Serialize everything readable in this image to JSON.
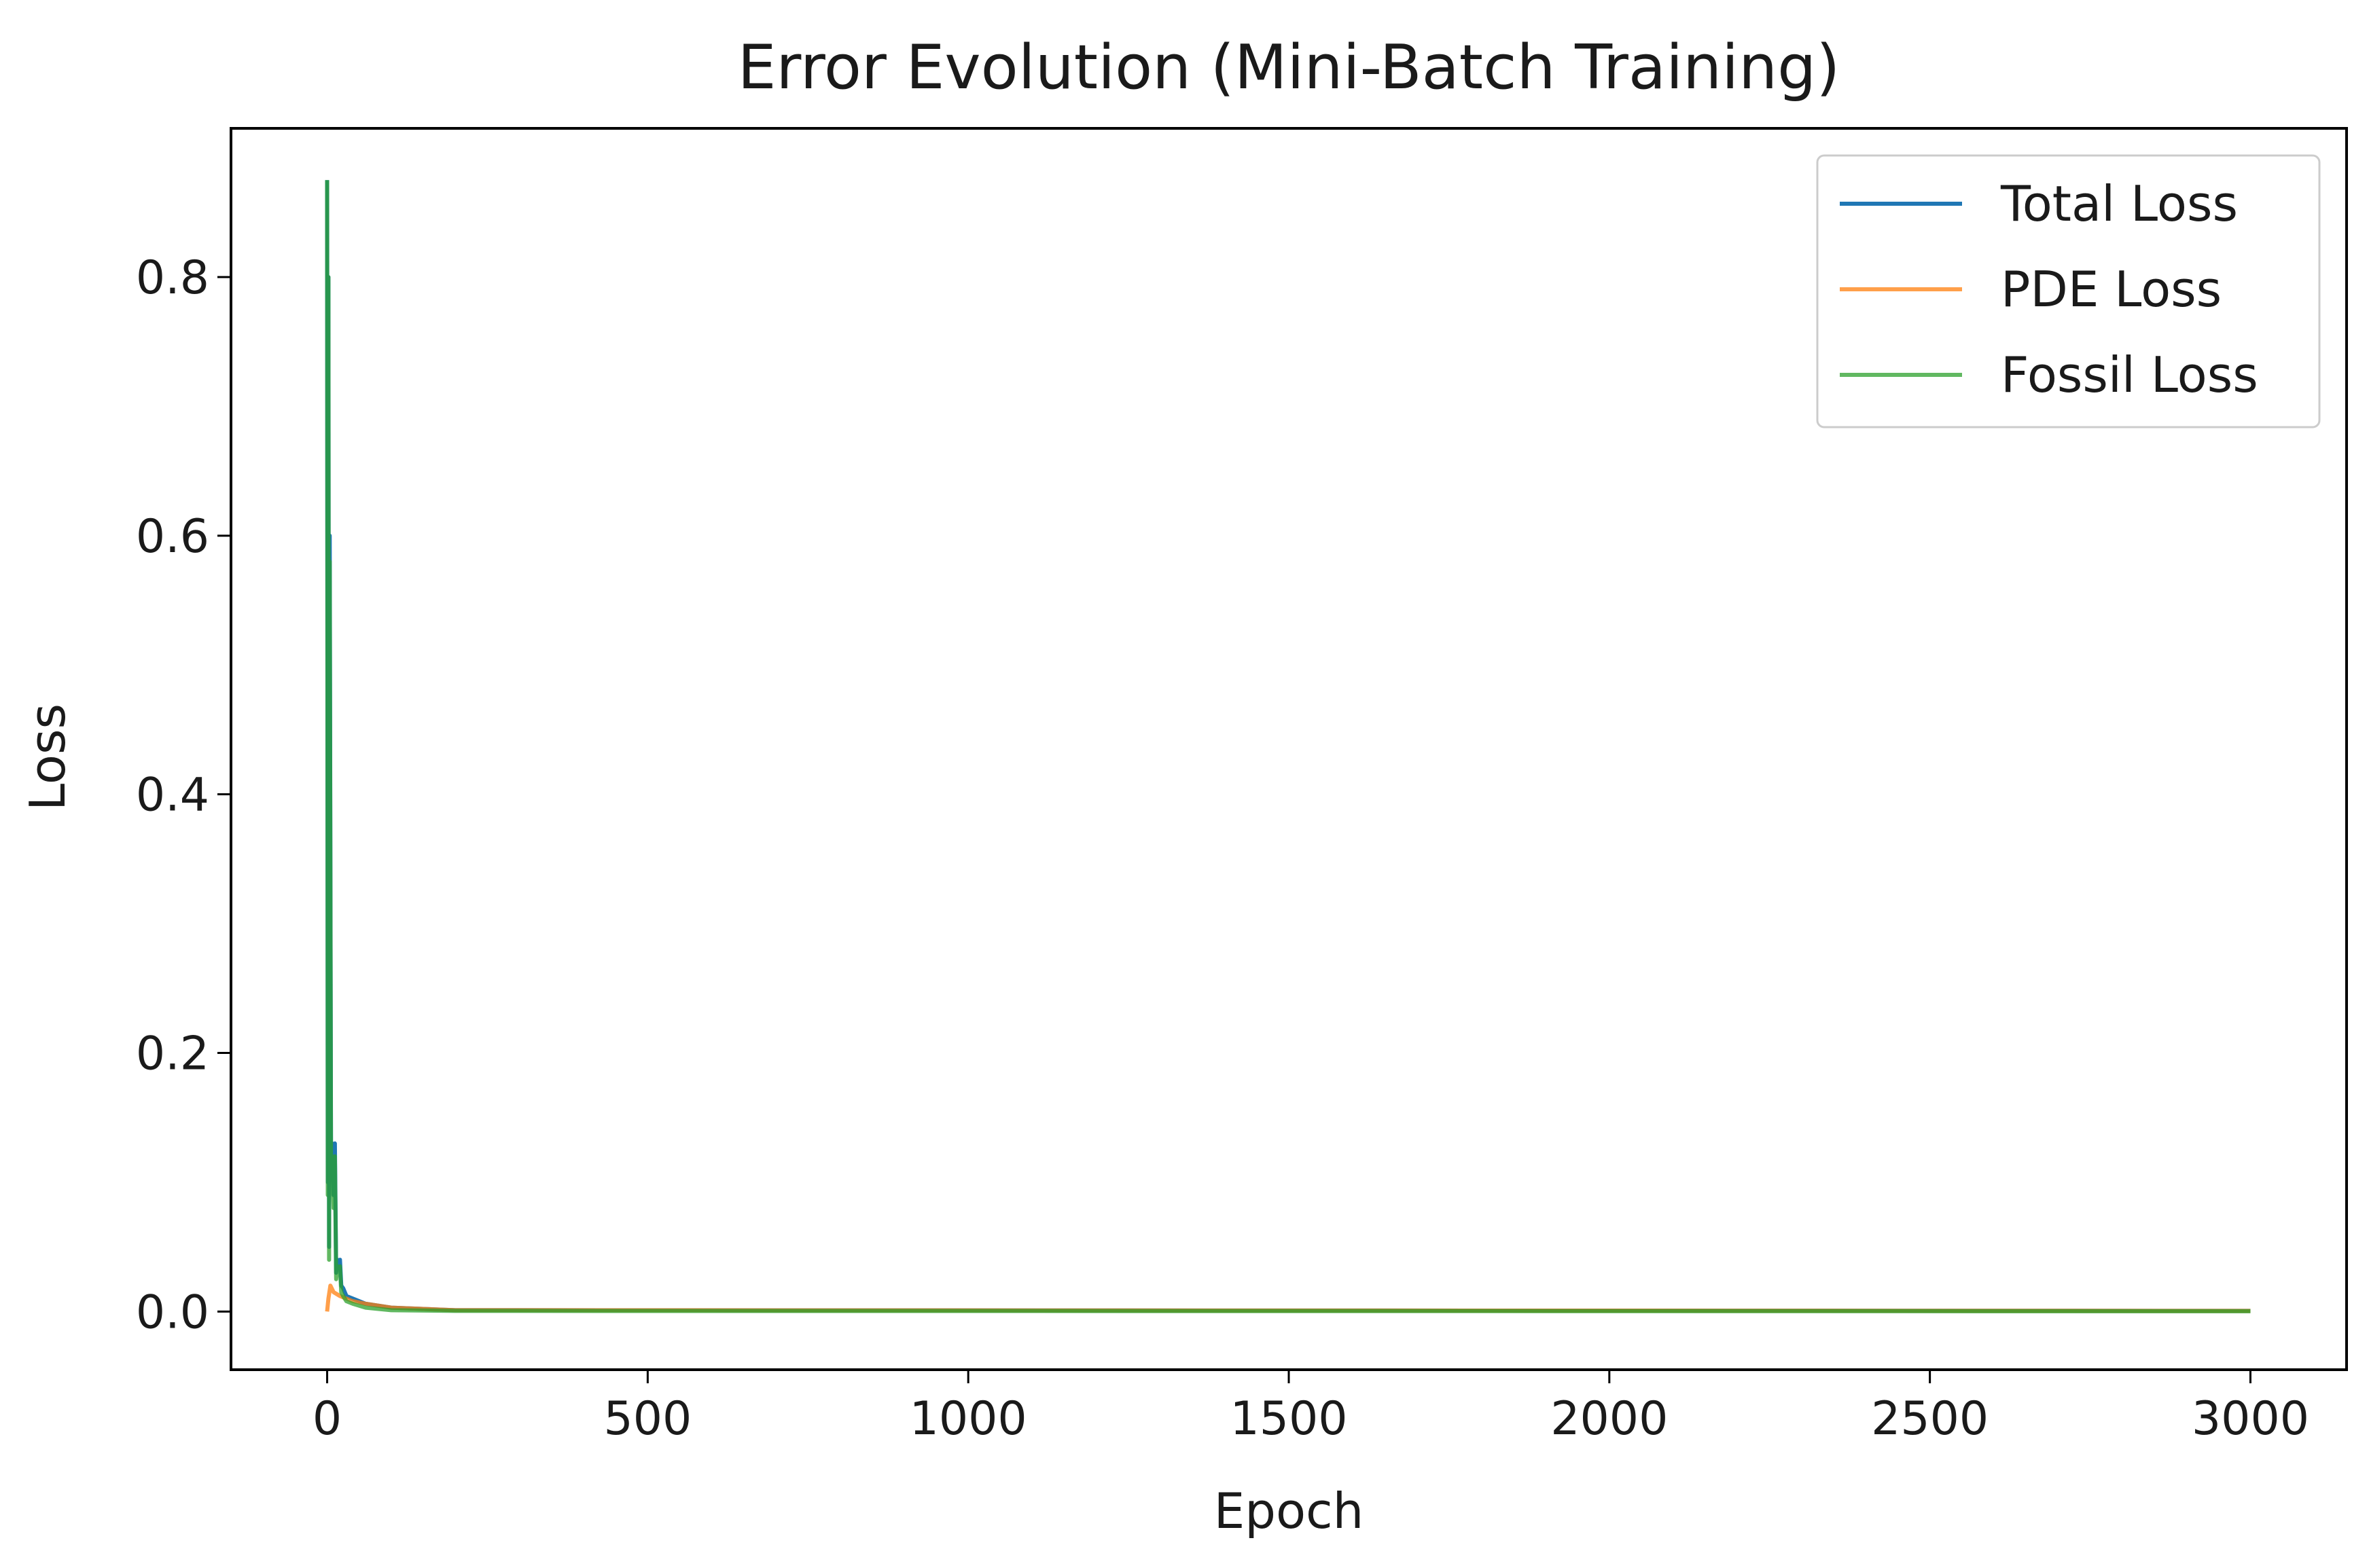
{
  "chart_data": {
    "type": "line",
    "title": "Error Evolution (Mini-Batch Training)",
    "xlabel": "Epoch",
    "ylabel": "Loss",
    "xlim": [
      -150,
      3150
    ],
    "ylim": [
      -0.045,
      0.915
    ],
    "xticks": [
      0,
      500,
      1000,
      1500,
      2000,
      2500,
      3000
    ],
    "xtick_labels": [
      "0",
      "500",
      "1000",
      "1500",
      "2000",
      "2500",
      "3000"
    ],
    "yticks": [
      0.0,
      0.2,
      0.4,
      0.6,
      0.8
    ],
    "ytick_labels": [
      "0.0",
      "0.2",
      "0.4",
      "0.6",
      "0.8"
    ],
    "grid": false,
    "legend_placement": "top-right",
    "series": [
      {
        "name": "Total Loss",
        "color": "#1f77b4",
        "x": [
          0,
          1,
          2,
          3,
          4,
          6,
          8,
          10,
          12,
          14,
          16,
          18,
          20,
          22,
          25,
          30,
          40,
          60,
          100,
          200,
          3000
        ],
        "y": [
          0.875,
          0.1,
          0.8,
          0.05,
          0.6,
          0.12,
          0.13,
          0.09,
          0.13,
          0.03,
          0.04,
          0.035,
          0.04,
          0.02,
          0.018,
          0.012,
          0.01,
          0.006,
          0.003,
          0.001,
          0.0005
        ]
      },
      {
        "name": "PDE Loss",
        "color": "#ff7f0e",
        "x": [
          0,
          2,
          5,
          10,
          20,
          40,
          60,
          100,
          200,
          3000
        ],
        "y": [
          0.0,
          0.01,
          0.02,
          0.015,
          0.012,
          0.008,
          0.006,
          0.003,
          0.001,
          0.0005
        ]
      },
      {
        "name": "Fossil Loss",
        "color": "#2ca02c",
        "x": [
          0,
          1,
          2,
          3,
          4,
          6,
          8,
          10,
          12,
          14,
          16,
          18,
          20,
          22,
          25,
          30,
          40,
          60,
          100,
          200,
          3000
        ],
        "y": [
          0.875,
          0.09,
          0.8,
          0.04,
          0.58,
          0.11,
          0.12,
          0.08,
          0.12,
          0.025,
          0.035,
          0.03,
          0.035,
          0.015,
          0.012,
          0.008,
          0.006,
          0.003,
          0.001,
          0.0005,
          0.0002
        ]
      }
    ]
  }
}
